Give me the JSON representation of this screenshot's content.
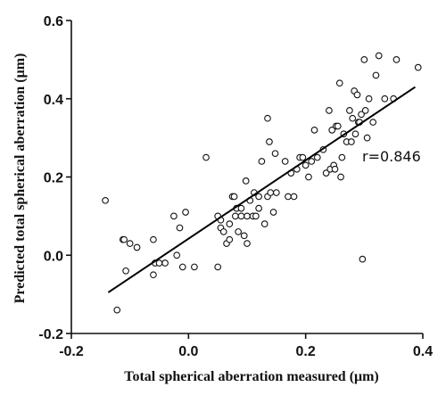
{
  "chart_data": {
    "type": "scatter",
    "title": "",
    "xlabel": "Total spherical aberration measured (μm)",
    "ylabel": "Predicted total spherical aberration (μm)",
    "xlim": [
      -0.2,
      0.4
    ],
    "ylim": [
      -0.2,
      0.6
    ],
    "x_ticks": [
      -0.2,
      0.0,
      0.2,
      0.4
    ],
    "x_tick_labels": [
      "-0.2",
      "0.0",
      "0.2",
      "0.4"
    ],
    "y_ticks": [
      -0.2,
      0.0,
      0.2,
      0.4,
      0.6
    ],
    "y_tick_labels": [
      "-0.2",
      "0.0",
      "0.2",
      "0.4",
      "0.6"
    ],
    "grid": false,
    "marker": "open-circle",
    "annotation": "r=0.846",
    "fit_line": {
      "x": [
        -0.137,
        0.387
      ],
      "y": [
        -0.095,
        0.43
      ]
    },
    "points": [
      [
        -0.142,
        0.14
      ],
      [
        -0.112,
        0.04
      ],
      [
        -0.107,
        -0.04
      ],
      [
        -0.1,
        0.03
      ],
      [
        -0.088,
        0.02
      ],
      [
        -0.11,
        0.04
      ],
      [
        -0.122,
        -0.14
      ],
      [
        -0.06,
        0.04
      ],
      [
        -0.057,
        -0.02
      ],
      [
        -0.05,
        -0.02
      ],
      [
        -0.04,
        -0.02
      ],
      [
        -0.06,
        -0.05
      ],
      [
        -0.025,
        0.1
      ],
      [
        -0.02,
        0.0
      ],
      [
        -0.01,
        -0.03
      ],
      [
        0.01,
        -0.03
      ],
      [
        -0.005,
        0.11
      ],
      [
        -0.015,
        0.07
      ],
      [
        0.03,
        0.25
      ],
      [
        0.05,
        -0.03
      ],
      [
        0.05,
        0.1
      ],
      [
        0.055,
        0.07
      ],
      [
        0.055,
        0.09
      ],
      [
        0.06,
        0.06
      ],
      [
        0.065,
        0.03
      ],
      [
        0.07,
        0.04
      ],
      [
        0.07,
        0.08
      ],
      [
        0.075,
        0.15
      ],
      [
        0.078,
        0.15
      ],
      [
        0.08,
        0.1
      ],
      [
        0.082,
        0.12
      ],
      [
        0.085,
        0.06
      ],
      [
        0.09,
        0.1
      ],
      [
        0.09,
        0.12
      ],
      [
        0.095,
        0.05
      ],
      [
        0.098,
        0.19
      ],
      [
        0.1,
        0.03
      ],
      [
        0.1,
        0.1
      ],
      [
        0.105,
        0.14
      ],
      [
        0.11,
        0.1
      ],
      [
        0.112,
        0.16
      ],
      [
        0.115,
        0.1
      ],
      [
        0.12,
        0.12
      ],
      [
        0.12,
        0.15
      ],
      [
        0.125,
        0.24
      ],
      [
        0.13,
        0.08
      ],
      [
        0.135,
        0.15
      ],
      [
        0.135,
        0.35
      ],
      [
        0.138,
        0.29
      ],
      [
        0.14,
        0.16
      ],
      [
        0.145,
        0.11
      ],
      [
        0.148,
        0.26
      ],
      [
        0.15,
        0.16
      ],
      [
        0.165,
        0.24
      ],
      [
        0.17,
        0.15
      ],
      [
        0.175,
        0.21
      ],
      [
        0.18,
        0.15
      ],
      [
        0.185,
        0.22
      ],
      [
        0.19,
        0.25
      ],
      [
        0.195,
        0.25
      ],
      [
        0.2,
        0.23
      ],
      [
        0.205,
        0.2
      ],
      [
        0.21,
        0.24
      ],
      [
        0.215,
        0.32
      ],
      [
        0.22,
        0.25
      ],
      [
        0.23,
        0.27
      ],
      [
        0.235,
        0.21
      ],
      [
        0.24,
        0.37
      ],
      [
        0.242,
        0.22
      ],
      [
        0.245,
        0.32
      ],
      [
        0.248,
        0.23
      ],
      [
        0.25,
        0.22
      ],
      [
        0.252,
        0.33
      ],
      [
        0.255,
        0.33
      ],
      [
        0.258,
        0.44
      ],
      [
        0.26,
        0.2
      ],
      [
        0.262,
        0.25
      ],
      [
        0.265,
        0.31
      ],
      [
        0.27,
        0.29
      ],
      [
        0.275,
        0.37
      ],
      [
        0.278,
        0.29
      ],
      [
        0.28,
        0.35
      ],
      [
        0.283,
        0.42
      ],
      [
        0.285,
        0.31
      ],
      [
        0.288,
        0.41
      ],
      [
        0.29,
        0.34
      ],
      [
        0.292,
        0.34
      ],
      [
        0.295,
        0.36
      ],
      [
        0.297,
        -0.01
      ],
      [
        0.3,
        0.5
      ],
      [
        0.302,
        0.37
      ],
      [
        0.305,
        0.3
      ],
      [
        0.308,
        0.4
      ],
      [
        0.315,
        0.34
      ],
      [
        0.32,
        0.46
      ],
      [
        0.325,
        0.51
      ],
      [
        0.335,
        0.4
      ],
      [
        0.35,
        0.4
      ],
      [
        0.355,
        0.5
      ],
      [
        0.392,
        0.48
      ]
    ]
  }
}
